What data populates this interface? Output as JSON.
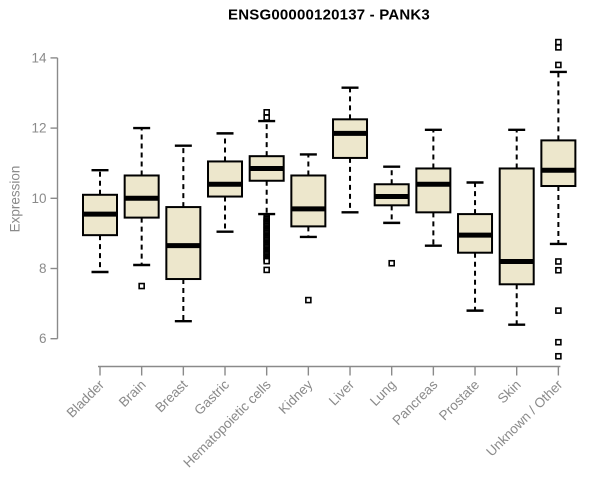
{
  "chart_data": {
    "type": "boxplot",
    "title": "ENSG00000120137 - PANK3",
    "ylabel": "Expression",
    "xlabel": "",
    "ylim": [
      6,
      14
    ],
    "yticks": [
      6,
      8,
      10,
      12,
      14
    ],
    "grid": false,
    "legend": false,
    "categories": [
      "Bladder",
      "Brain",
      "Breast",
      "Gastric",
      "Hematopoietic cells",
      "Kidney",
      "Liver",
      "Lung",
      "Pancreas",
      "Prostate",
      "Skin",
      "Unknown / Other"
    ],
    "boxes": [
      {
        "category": "Bladder",
        "whisker_low": 7.9,
        "q1": 8.95,
        "median": 9.55,
        "q3": 10.1,
        "whisker_high": 10.8,
        "outliers": []
      },
      {
        "category": "Brain",
        "whisker_low": 8.1,
        "q1": 9.45,
        "median": 10.0,
        "q3": 10.65,
        "whisker_high": 12.0,
        "outliers": [
          7.5
        ]
      },
      {
        "category": "Breast",
        "whisker_low": 6.5,
        "q1": 7.7,
        "median": 8.65,
        "q3": 9.75,
        "whisker_high": 11.5,
        "outliers": []
      },
      {
        "category": "Gastric",
        "whisker_low": 9.05,
        "q1": 10.05,
        "median": 10.4,
        "q3": 11.05,
        "whisker_high": 11.85,
        "outliers": []
      },
      {
        "category": "Hematopoietic cells",
        "whisker_low": 9.55,
        "q1": 10.5,
        "median": 10.85,
        "q3": 11.2,
        "whisker_high": 12.2,
        "outliers": [
          12.45,
          12.3,
          9.45,
          9.41,
          9.37,
          9.33,
          9.29,
          9.25,
          9.21,
          9.17,
          9.13,
          9.09,
          9.05,
          9.01,
          8.97,
          8.93,
          8.89,
          8.85,
          8.81,
          8.77,
          8.73,
          8.69,
          8.65,
          8.61,
          8.57,
          8.53,
          8.49,
          8.45,
          8.41,
          8.37,
          8.33,
          8.29,
          8.25,
          8.21,
          7.96
        ]
      },
      {
        "category": "Kidney",
        "whisker_low": 8.9,
        "q1": 9.2,
        "median": 9.7,
        "q3": 10.65,
        "whisker_high": 11.25,
        "outliers": [
          7.1
        ]
      },
      {
        "category": "Liver",
        "whisker_low": 9.6,
        "q1": 11.15,
        "median": 11.85,
        "q3": 12.25,
        "whisker_high": 13.15,
        "outliers": []
      },
      {
        "category": "Lung",
        "whisker_low": 9.3,
        "q1": 9.8,
        "median": 10.05,
        "q3": 10.4,
        "whisker_high": 10.9,
        "outliers": [
          8.15
        ]
      },
      {
        "category": "Pancreas",
        "whisker_low": 8.65,
        "q1": 9.6,
        "median": 10.4,
        "q3": 10.85,
        "whisker_high": 11.95,
        "outliers": []
      },
      {
        "category": "Prostate",
        "whisker_low": 6.8,
        "q1": 8.45,
        "median": 8.95,
        "q3": 9.55,
        "whisker_high": 10.45,
        "outliers": []
      },
      {
        "category": "Skin",
        "whisker_low": 6.4,
        "q1": 7.55,
        "median": 8.2,
        "q3": 10.85,
        "whisker_high": 11.95,
        "outliers": []
      },
      {
        "category": "Unknown / Other",
        "whisker_low": 8.7,
        "q1": 10.35,
        "median": 10.8,
        "q3": 11.65,
        "whisker_high": 13.6,
        "outliers": [
          14.45,
          14.3,
          13.8,
          8.2,
          7.95,
          6.8,
          5.9,
          5.5
        ]
      }
    ],
    "colors": {
      "box_fill": "#ede7cc",
      "box_border": "#000000",
      "median": "#000000",
      "whisker": "#000000",
      "outlier_stroke": "#000000",
      "outlier_fill": "#ffffff",
      "axis": "#8a8a8a",
      "tick_label": "#8a8a8a",
      "title": "#000000",
      "background": "#ffffff"
    }
  }
}
